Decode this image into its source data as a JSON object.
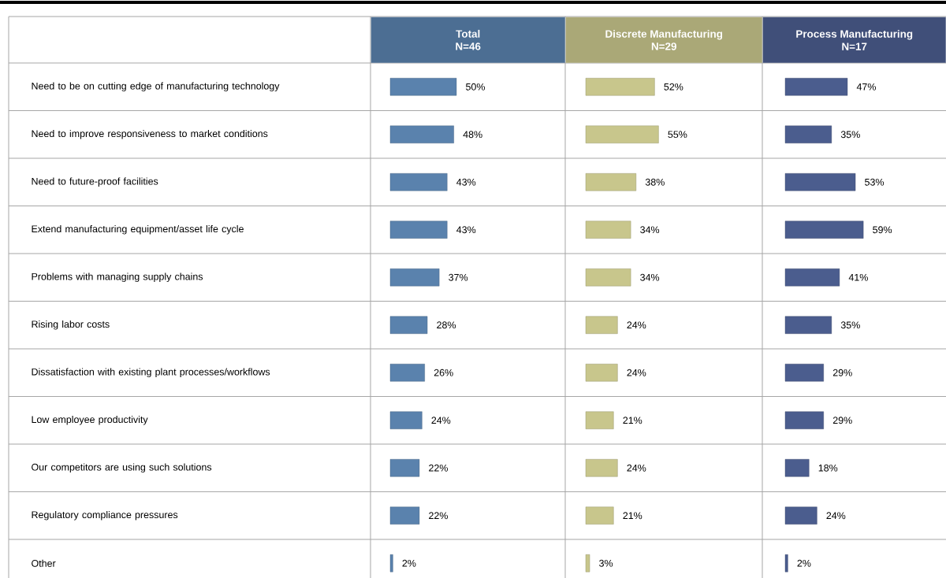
{
  "chart_data": [
    {
      "type": "bar",
      "orientation": "horizontal",
      "title": "Total",
      "subtitle": "N=46",
      "categories": [
        "Need to be on cutting edge of manufacturing technology",
        "Need to improve responsiveness to market conditions",
        "Need to future-proof facilities",
        "Extend manufacturing equipment/asset life cycle",
        "Problems with managing supply chains",
        "Rising labor costs",
        "Dissatisfaction with existing plant processes/workflows",
        "Low employee productivity",
        "Our competitors are using such solutions",
        "Regulatory compliance pressures",
        "Other"
      ],
      "values": [
        50,
        48,
        43,
        43,
        37,
        28,
        26,
        24,
        22,
        22,
        2
      ],
      "value_labels": [
        "50%",
        "48%",
        "43%",
        "43%",
        "37%",
        "28%",
        "26%",
        "24%",
        "22%",
        "22%",
        "2%"
      ],
      "color": "#5a82ad",
      "tick_labels": "y"
    },
    {
      "type": "bar",
      "orientation": "horizontal",
      "title": "Discrete Manufacturing",
      "subtitle": "N=29",
      "categories": [
        null,
        null,
        null,
        null,
        null,
        null,
        null,
        null,
        null,
        null,
        null
      ],
      "values": [
        52,
        55,
        38,
        34,
        34,
        24,
        24,
        21,
        24,
        21,
        3
      ],
      "value_labels": [
        "52%",
        "55%",
        "38%",
        "34%",
        "34%",
        "24%",
        "24%",
        "21%",
        "24%",
        "21%",
        "3%"
      ],
      "color": "#c8c68c",
      "tick_labels": false
    },
    {
      "type": "bar",
      "orientation": "horizontal",
      "title": "Process Manufacturing",
      "subtitle": "N=17",
      "categories": [
        null,
        null,
        null,
        null,
        null,
        null,
        null,
        null,
        null,
        null,
        null
      ],
      "values": [
        47,
        35,
        53,
        59,
        41,
        35,
        29,
        29,
        18,
        24,
        2
      ],
      "value_labels": [
        "47%",
        "35%",
        "53%",
        "59%",
        "41%",
        "35%",
        "29%",
        "29%",
        "18%",
        "24%",
        "2%"
      ],
      "color": "#4b5d8e",
      "tick_labels": false
    }
  ]
}
